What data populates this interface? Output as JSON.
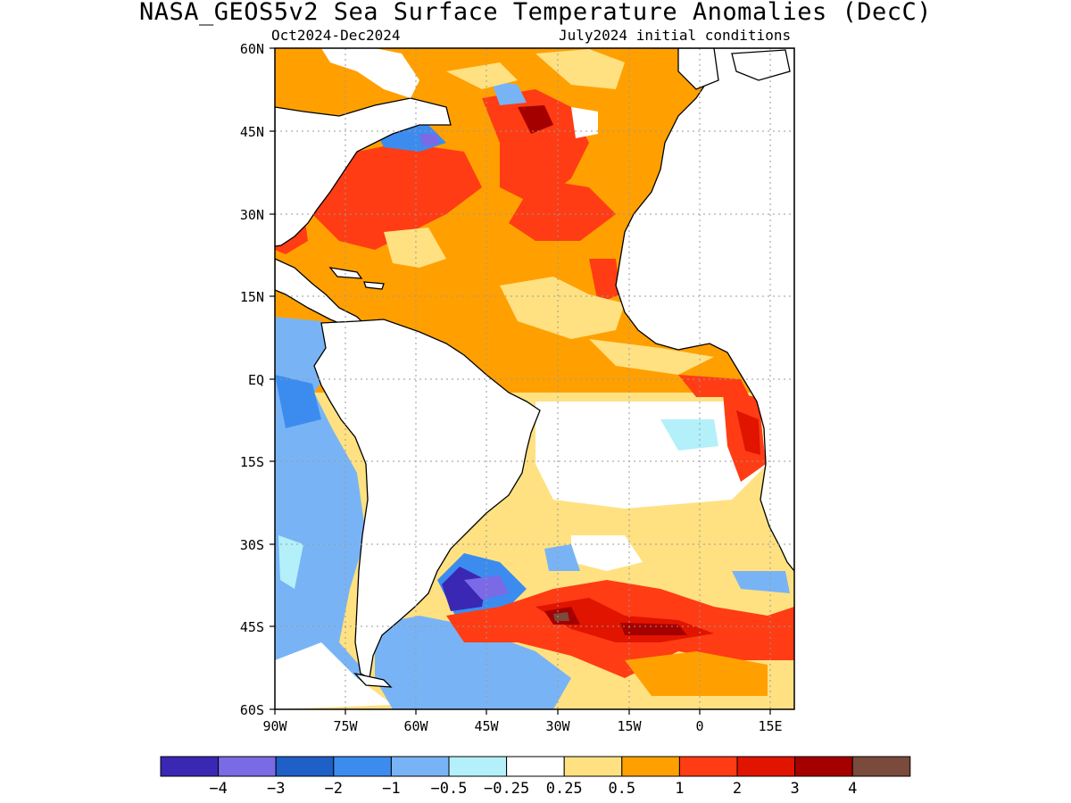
{
  "title": "NASA_GEOS5v2 Sea Surface Temperature Anomalies (DecC)",
  "subtitle_left": "Oct2024-Dec2024",
  "subtitle_right": "July2024 initial conditions",
  "map": {
    "lon_range": [
      -90,
      20
    ],
    "lat_range": [
      -60,
      60
    ],
    "lat_ticks": [
      "60N",
      "45N",
      "30N",
      "15N",
      "EQ",
      "15S",
      "30S",
      "45S",
      "60S"
    ],
    "lon_ticks": [
      "90W",
      "75W",
      "60W",
      "45W",
      "30W",
      "15W",
      "0",
      "15E"
    ],
    "grid": "dotted"
  },
  "colorbar": {
    "colors": [
      "#3a28b4",
      "#7a6ae6",
      "#1e5fc8",
      "#3c8cf0",
      "#78b4f5",
      "#b4f0fa",
      "#ffffff",
      "#ffe182",
      "#ffa000",
      "#ff3c14",
      "#e11400",
      "#a50000",
      "#7a4a3c"
    ],
    "labels": [
      "-4",
      "-3",
      "-2",
      "-1",
      "-0.5",
      "-0.25",
      "0.25",
      "0.5",
      "1",
      "2",
      "3",
      "4"
    ]
  }
}
